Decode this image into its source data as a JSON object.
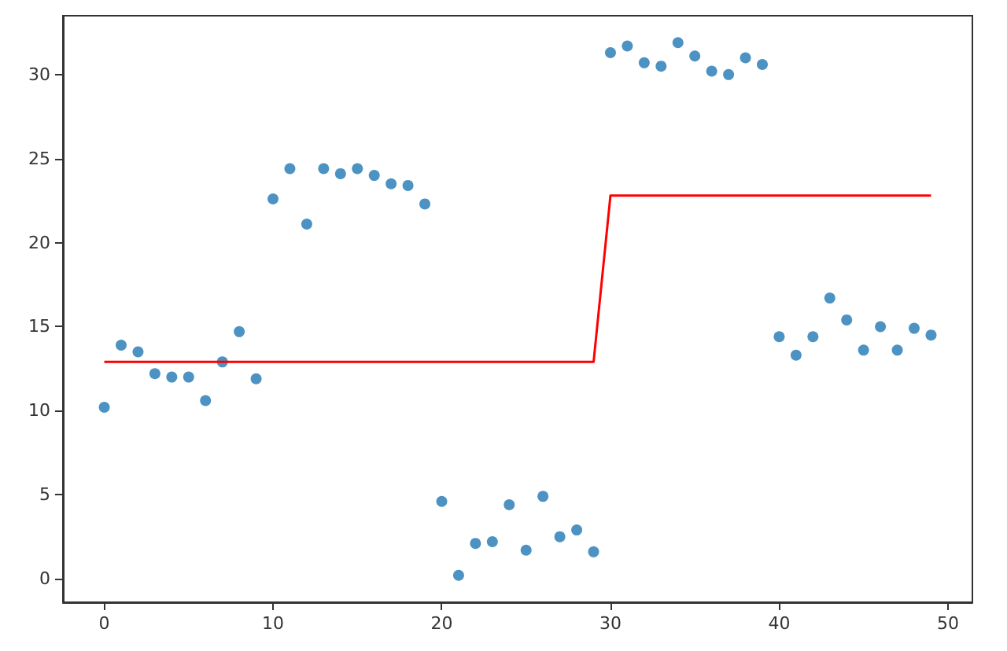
{
  "chart_data": {
    "type": "scatter",
    "marker": "circle",
    "grid": false,
    "xlim": [
      -2.45,
      51.45
    ],
    "xticks": [
      0,
      10,
      20,
      30,
      40,
      50
    ],
    "ylim": [
      -1.4,
      33.5
    ],
    "yticks": [
      0,
      5,
      10,
      15,
      20,
      25,
      30
    ],
    "series": [
      {
        "color": "#1f77b4",
        "x": [
          0,
          1,
          2,
          3,
          4,
          5,
          6,
          7,
          8,
          9,
          10,
          11,
          12,
          13,
          14,
          15,
          16,
          17,
          18,
          19,
          20,
          21,
          22,
          23,
          24,
          25,
          26,
          27,
          28,
          29,
          30,
          31,
          32,
          33,
          34,
          35,
          36,
          37,
          38,
          39,
          40,
          41,
          42,
          43,
          44,
          45,
          46,
          47,
          48,
          49
        ],
        "values": [
          10.2,
          13.9,
          13.5,
          12.2,
          12.0,
          12.0,
          10.6,
          12.9,
          14.7,
          11.9,
          22.6,
          24.4,
          21.1,
          24.4,
          24.1,
          24.4,
          24.0,
          23.5,
          23.4,
          22.3,
          4.6,
          0.2,
          2.1,
          2.2,
          4.4,
          1.7,
          4.9,
          2.5,
          2.9,
          1.6,
          31.3,
          31.7,
          30.7,
          30.5,
          31.9,
          31.1,
          30.2,
          30.0,
          31.0,
          30.6,
          14.4,
          13.3,
          14.4,
          16.7,
          15.4,
          13.6,
          15.0,
          13.6,
          14.9,
          14.5
        ]
      },
      {
        "type": "line",
        "color": "#ff0000",
        "marker": "none",
        "x": [
          0,
          29,
          30,
          49
        ],
        "values": [
          12.9,
          12.9,
          22.8,
          22.8
        ]
      }
    ]
  }
}
